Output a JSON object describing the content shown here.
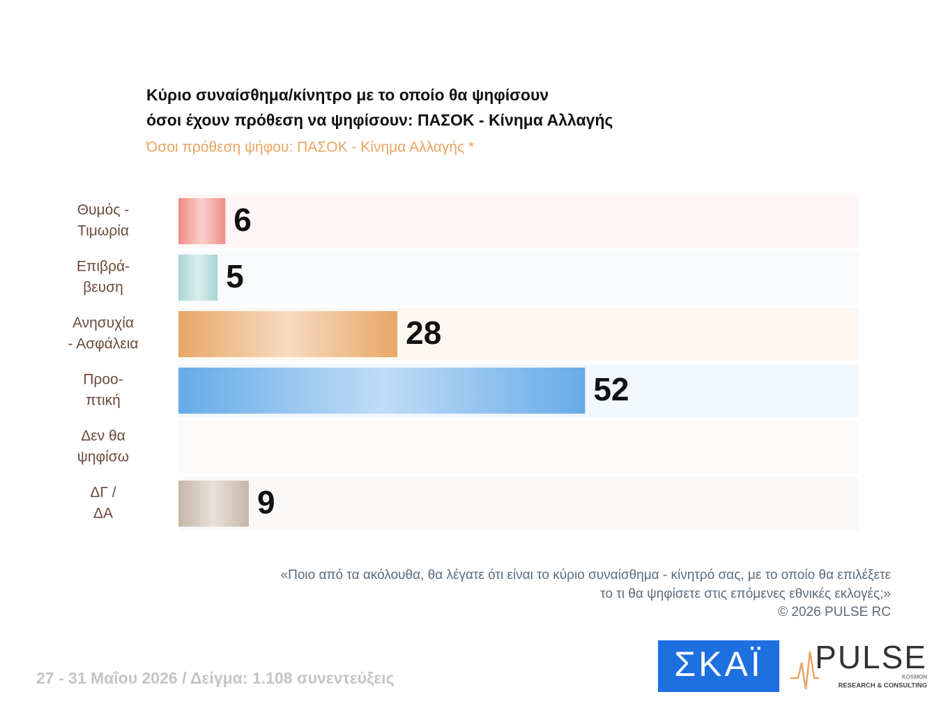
{
  "chart_data": {
    "type": "bar",
    "orientation": "horizontal",
    "title": [
      "Κύριο συναίσθημα/κίνητρο με το οποίο θα ψηφίσουν",
      "όσοι έχουν πρόθεση να ψηφίσουν: ΠΑΣΟΚ - Κίνημα Αλλαγής"
    ],
    "subtitle": "Όσοι πρόθεση ψήφου: ΠΑΣΟΚ - Κίνημα Αλλαγής *",
    "categories": [
      [
        "Θυμός -",
        "Τιμωρία"
      ],
      [
        "Επιβρά-",
        "βευση"
      ],
      [
        "Ανησυχία",
        "- Ασφάλεια"
      ],
      [
        "Προο-",
        "πτική"
      ],
      [
        "Δεν θα",
        "ψηφίσω"
      ],
      [
        "ΔΓ /",
        "ΔΑ"
      ]
    ],
    "values": [
      6,
      5,
      28,
      52,
      null,
      9
    ],
    "colors": [
      "#ef8c84",
      "#a6d6d2",
      "#e9a765",
      "#66abe8",
      null,
      "#c6b6a6"
    ],
    "xlim": [
      0,
      87
    ],
    "note": [
      "«Ποιο από τα ακόλουθα, θα λέγατε ότι είναι το κύριο συναίσθημα - κίνητρό σας, με το οποίο θα επιλέξετε",
      "το τι θα ψηφίσετε στις επόμενες εθνικές εκλογές;»",
      "©  2026  PULSE RC"
    ],
    "footer": "27 - 31  Μαΐου 2026  /  Δείγμα:  1.108 συνεντεύξεις",
    "logos": {
      "skai": "ΣΚΑΪ",
      "pulse": "PULSE",
      "pulse_sub": "RESEARCH & CONSULTING",
      "pulse_tag": "KOSMON"
    }
  }
}
